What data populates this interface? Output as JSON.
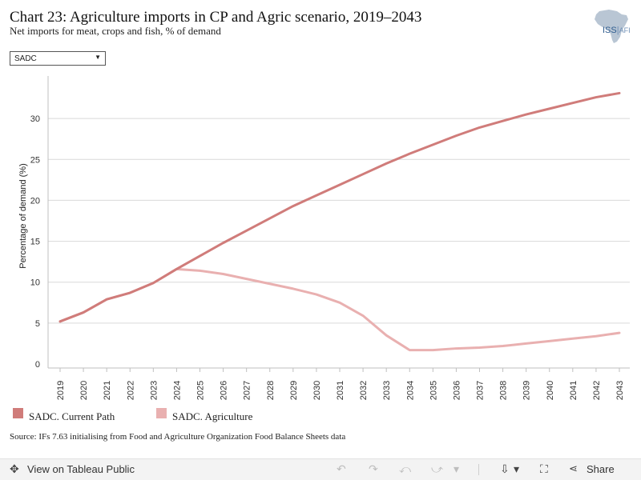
{
  "header": {
    "title": "Chart 23: Agriculture imports in CP and Agric scenario, 2019–2043",
    "subtitle": "Net imports for meat, crops and fish, % of demand"
  },
  "logo": {
    "main": "ISS",
    "sep": "|",
    "suffix": "AFI"
  },
  "filter": {
    "selected": "SADC",
    "arrow": "▼"
  },
  "chart_data": {
    "type": "line",
    "title": "Chart 23: Agriculture imports in CP and Agric scenario, 2019–2043",
    "subtitle": "Net imports for meat, crops and fish, % of demand",
    "xlabel": "",
    "ylabel": "Percentage of demand (%)",
    "x": [
      2019,
      2020,
      2021,
      2022,
      2023,
      2024,
      2025,
      2026,
      2027,
      2028,
      2029,
      2030,
      2031,
      2032,
      2033,
      2034,
      2035,
      2036,
      2037,
      2038,
      2039,
      2040,
      2041,
      2042,
      2043
    ],
    "ylim": [
      0,
      35
    ],
    "yticks": [
      0,
      5,
      10,
      15,
      20,
      25,
      30
    ],
    "grid": true,
    "legend_position": "bottom-left",
    "series": [
      {
        "name": "SADC. Current Path",
        "color": "#d07c7a",
        "values": [
          5.2,
          6.3,
          7.9,
          8.7,
          9.9,
          11.6,
          13.2,
          14.8,
          16.3,
          17.8,
          19.3,
          20.6,
          21.9,
          23.2,
          24.5,
          25.7,
          26.8,
          27.9,
          28.9,
          29.7,
          30.5,
          31.2,
          31.9,
          32.6,
          33.1
        ]
      },
      {
        "name": "SADC. Agriculture",
        "color": "#e9b0b0",
        "values": [
          5.2,
          6.3,
          7.9,
          8.7,
          9.9,
          11.6,
          11.4,
          11.0,
          10.4,
          9.8,
          9.2,
          8.5,
          7.5,
          5.9,
          3.5,
          1.7,
          1.7,
          1.9,
          2.0,
          2.2,
          2.5,
          2.8,
          3.1,
          3.4,
          3.8
        ]
      }
    ]
  },
  "source": "Source: IFs 7.63 initialising from Food and Agriculture Organization Food Balance Sheets data",
  "footer": {
    "view_label": "View on Tableau Public",
    "view_icon": "✥",
    "share_label": "Share",
    "share_icon": "⋖",
    "undo_icon": "↶",
    "redo_icon": "↷",
    "revert_icon": "⤺",
    "forward_icon": "⤻",
    "menu_icon": "▾",
    "download_icon": "⇩",
    "fullscreen_icon": "⛶"
  }
}
